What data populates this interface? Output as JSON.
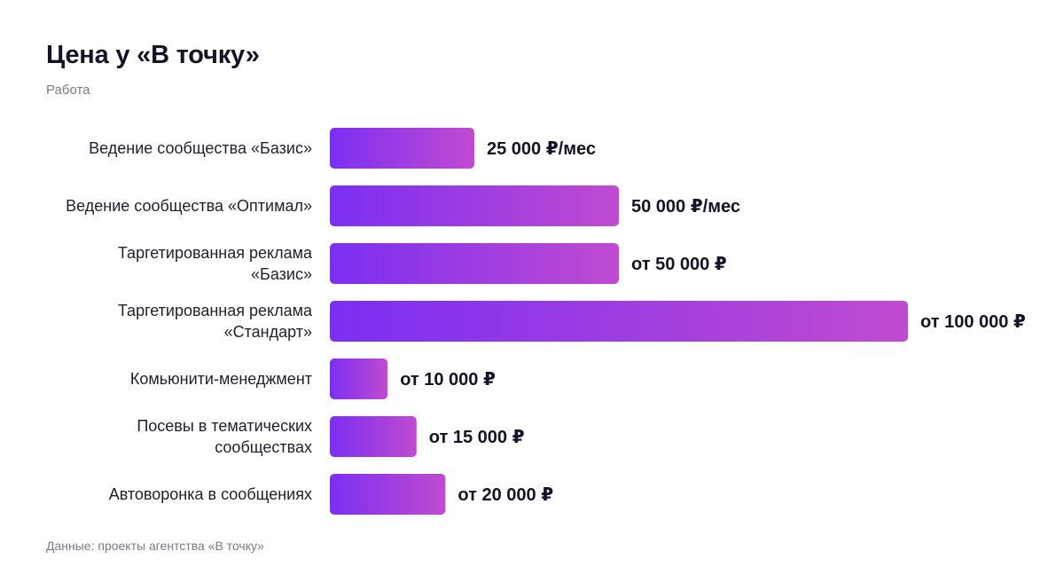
{
  "header": {
    "title": "Цена у «В точку»",
    "subtitle": "Работа"
  },
  "footer": {
    "source": "Данные: проекты агентства «В точку»"
  },
  "colors": {
    "bar_start": "#7b2ff2",
    "bar_end": "#c04bd0"
  },
  "chart_data": {
    "type": "bar",
    "orientation": "horizontal",
    "title": "Цена у «В точку»",
    "subtitle": "Работа",
    "categories": [
      [
        "Ведение сообщества «Базис»"
      ],
      [
        "Ведение сообщества «Оптимал»"
      ],
      [
        "Таргетированная реклама",
        "«Базис»"
      ],
      [
        "Таргетированная реклама",
        "«Стандарт»"
      ],
      [
        "Комьюнити-менеджмент"
      ],
      [
        "Посевы в тематических",
        "сообществах"
      ],
      [
        "Автоворонка в сообщениях"
      ]
    ],
    "values": [
      25000,
      50000,
      50000,
      100000,
      10000,
      15000,
      20000
    ],
    "value_labels": [
      "25 000 ₽/мес",
      "50 000 ₽/мес",
      "от 50 000 ₽",
      "от 100 000 ₽",
      "от 10 000 ₽",
      "от 15 000 ₽",
      "от 20 000 ₽"
    ],
    "xlim": [
      0,
      100000
    ],
    "grid": false,
    "legend": "none"
  }
}
